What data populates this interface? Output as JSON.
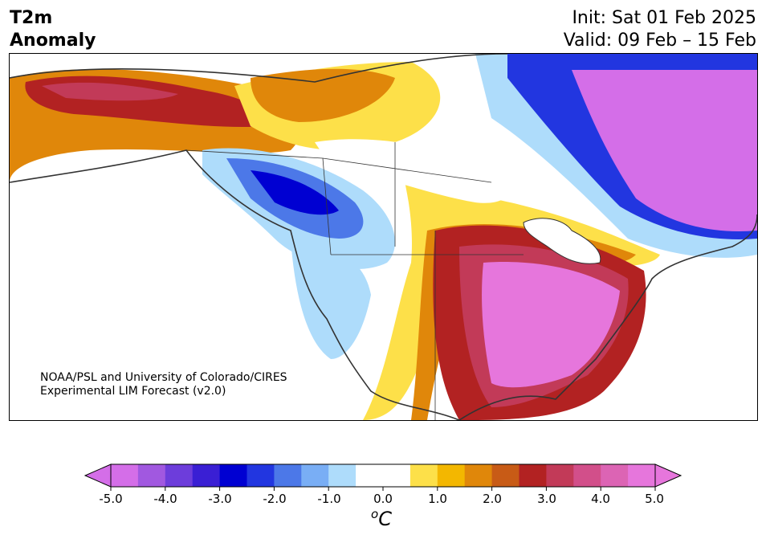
{
  "header": {
    "title_line1": "T2m",
    "title_line2": "Anomaly",
    "init": "Init: Sat 01 Feb 2025",
    "valid": "Valid: 09 Feb – 15 Feb"
  },
  "credit": {
    "line1": "NOAA/PSL and University of Colorado/CIRES",
    "line2": "Experimental LIM Forecast (v2.0)"
  },
  "colorbar": {
    "ticks": [
      "-5.0",
      "-4.0",
      "-3.0",
      "-2.0",
      "-1.0",
      "0.0",
      "1.0",
      "2.0",
      "3.0",
      "4.0",
      "5.0"
    ],
    "unit_base": "C",
    "unit_sup": "o",
    "colors": [
      "#d46ee8",
      "#a158e0",
      "#6d3ddb",
      "#3a1fd4",
      "#0000d2",
      "#2236e0",
      "#4c78e8",
      "#79aef5",
      "#aedcfb",
      "#ffffff",
      "#ffffff",
      "#fde049",
      "#f3b700",
      "#e0870a",
      "#c85b16",
      "#b22222",
      "#c23a58",
      "#d24f8a",
      "#dc64b4",
      "#e676dc"
    ]
  },
  "map": {
    "colors": {
      "strong_warm": "#e676dc",
      "warm_red": "#b22222",
      "warm_orange": "#e0870a",
      "warm_yellow": "#fde049",
      "cold_blue": "#2236e0",
      "cold_light": "#aedcfb",
      "cold_purple": "#d46ee8"
    }
  }
}
